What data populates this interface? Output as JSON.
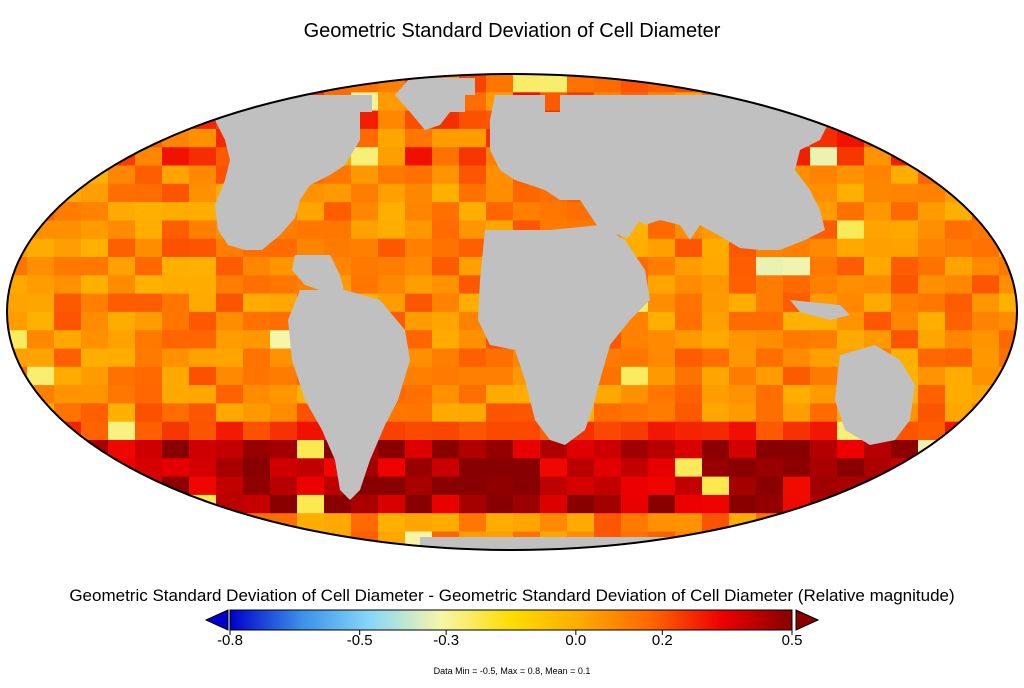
{
  "title": "Geometric Standard Deviation of Cell Diameter",
  "colorbar": {
    "title": "Geometric Standard Deviation of Cell Diameter - Geometric Standard Deviation of Cell Diameter (Relative magnitude)",
    "min": -0.8,
    "max": 0.5,
    "ticks": [
      {
        "value": -0.8,
        "label": "-0.8"
      },
      {
        "value": -0.5,
        "label": "-0.5"
      },
      {
        "value": -0.3,
        "label": "-0.3"
      },
      {
        "value": 0.0,
        "label": "0.0"
      },
      {
        "value": 0.2,
        "label": "0.2"
      },
      {
        "value": 0.5,
        "label": "0.5"
      }
    ],
    "colors": [
      "#0000cc",
      "#3a8ee8",
      "#88d8f8",
      "#f6f6aa",
      "#ffdd00",
      "#ffaa00",
      "#ff6600",
      "#ee0000",
      "#880000"
    ]
  },
  "stats": "Data Min = -0.5, Max = 0.8, Mean = 0.1",
  "map": {
    "projection": "Robinson-like global grid",
    "land_color": "#c0c0c0",
    "ocean_field_note": "0.1 mean; high values in Southern Ocean band"
  }
}
